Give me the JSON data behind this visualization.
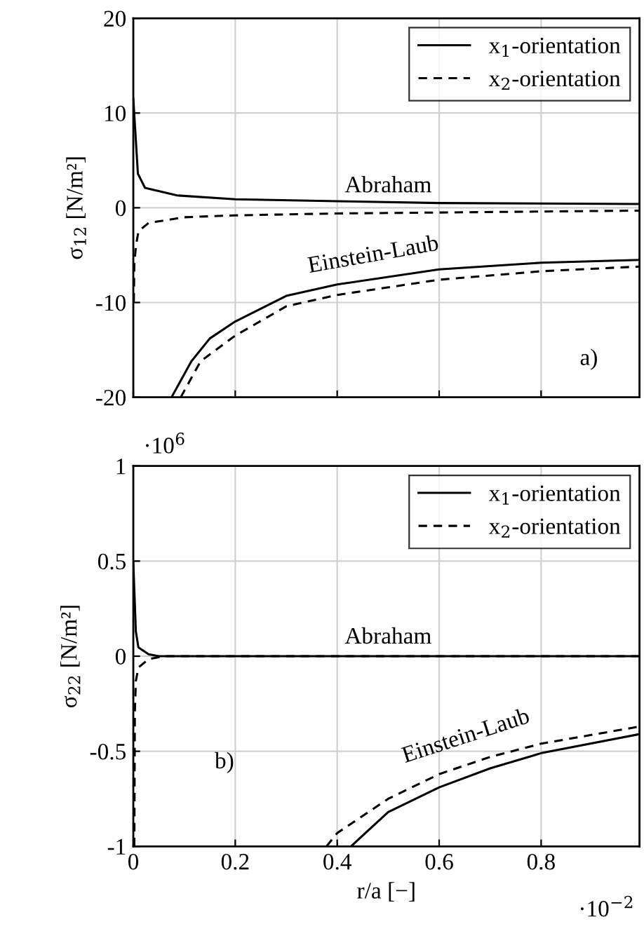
{
  "chart_data": [
    {
      "type": "line",
      "ylabel": "σ$_{12}$ [N/m²]",
      "xlim": [
        0,
        0.993
      ],
      "ylim": [
        -20,
        20
      ],
      "xticks": [
        {
          "value": 0,
          "label": null
        },
        {
          "value": 0.2,
          "label": null
        },
        {
          "value": 0.4,
          "label": null
        },
        {
          "value": 0.6,
          "label": null
        },
        {
          "value": 0.8,
          "label": null
        }
      ],
      "yticks": [
        -20,
        -10,
        0,
        10,
        20
      ],
      "tick_labels": "y",
      "grid": true,
      "legend": "top right",
      "series": [
        {
          "name": "x$_{1}$-orientation",
          "color": "#000000",
          "line_style": "solid",
          "x": [
            0,
            0.009,
            0.023,
            0.086,
            0.2,
            0.4,
            0.6,
            0.993
          ],
          "values": [
            11.5,
            3.6,
            2.1,
            1.3,
            0.9,
            0.7,
            0.5,
            0.4
          ]
        },
        {
          "name": "x$_{2}$-orientation",
          "color": "#000000",
          "line_style": "dashed",
          "x": [
            0.001,
            0.002,
            0.005,
            0.01,
            0.03,
            0.1,
            0.2,
            0.4,
            0.6,
            0.993
          ],
          "values": [
            -9.9,
            -6,
            -4.1,
            -2.5,
            -1.6,
            -1,
            -0.8,
            -0.6,
            -0.5,
            -0.3
          ]
        },
        {
          "color": "#000000",
          "line_style": "solid",
          "x": [
            0.075,
            0.114,
            0.15,
            0.2,
            0.3,
            0.4,
            0.6,
            0.8,
            0.993
          ],
          "values": [
            -20,
            -16.2,
            -13.8,
            -12,
            -9.3,
            -8.1,
            -6.5,
            -5.8,
            -5.5
          ]
        },
        {
          "color": "#000000",
          "line_style": "dashed",
          "x": [
            0.093,
            0.132,
            0.2,
            0.3,
            0.4,
            0.6,
            0.8,
            0.993
          ],
          "values": [
            -20,
            -16.2,
            -13.5,
            -10.4,
            -9.2,
            -7.6,
            -6.7,
            -6.2
          ]
        }
      ],
      "annotations": [
        {
          "text": "Abraham",
          "x": 0.5,
          "y": 0.7
        },
        {
          "text": "Einstein-Laub",
          "x": 0.49,
          "y": -7.4
        },
        "a)"
      ]
    },
    {
      "type": "line",
      "xlabel": "r/a [−]",
      "ylabel": "σ$_{22}$ [N/m²]",
      "xlim": [
        0,
        0.993
      ],
      "ylim": [
        -1,
        1
      ],
      "xticks": [
        0,
        0.2,
        0.4,
        0.6,
        0.8
      ],
      "yticks": [
        -1,
        -0.5,
        0,
        0.5,
        1
      ],
      "grid": true,
      "legend": "top right",
      "series": [
        {
          "name": "x$_{1}$-orientation",
          "color": "#000000",
          "line_style": "solid",
          "x": [
            0,
            0.005,
            0.01,
            0.03,
            0.05,
            0.2,
            0.993
          ],
          "values": [
            0.49,
            0.13,
            0.046,
            0.01,
            0,
            0,
            0
          ]
        },
        {
          "name": "x$_{2}$-orientation",
          "color": "#000000",
          "line_style": "dashed",
          "x": [
            0.002,
            0.003,
            0.005,
            0.01,
            0.03,
            0.06,
            0.2,
            0.993
          ],
          "values": [
            -1,
            -0.3,
            -0.13,
            -0.06,
            -0.015,
            0,
            0,
            0
          ]
        },
        {
          "color": "#000000",
          "line_style": "solid",
          "x": [
            0.427,
            0.5,
            0.6,
            0.7,
            0.8,
            0.993
          ],
          "values": [
            -1,
            -0.82,
            -0.69,
            -0.59,
            -0.51,
            -0.41
          ]
        },
        {
          "color": "#000000",
          "line_style": "dashed",
          "x": [
            0.379,
            0.4,
            0.5,
            0.6,
            0.7,
            0.8,
            0.993
          ],
          "values": [
            -1,
            -0.93,
            -0.75,
            -0.62,
            -0.53,
            -0.46,
            -0.37
          ]
        }
      ],
      "annotations": [
        "·10$^{6}$",
        {
          "text": "Abraham",
          "x": 0.5,
          "y": 0.02
        },
        {
          "text": "Einstein-Laub",
          "x": 0.69,
          "y": -0.54
        },
        "b)",
        "·10$^{−2}$"
      ]
    }
  ]
}
